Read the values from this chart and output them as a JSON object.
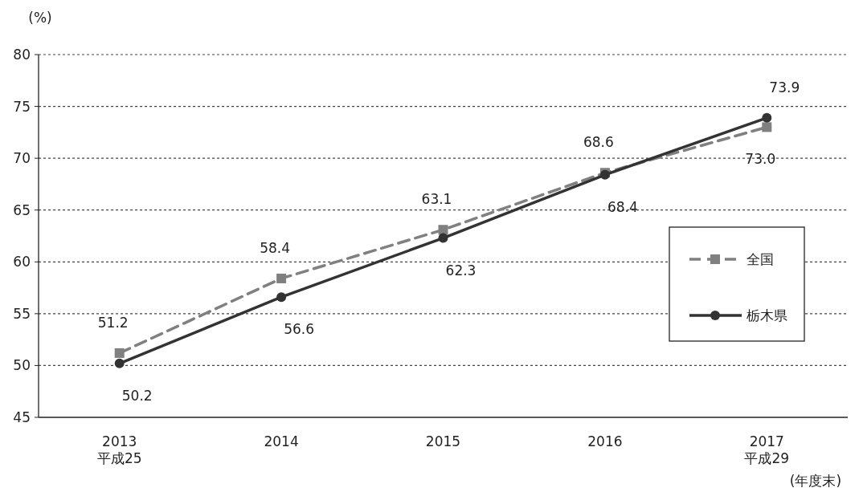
{
  "chart_data": {
    "type": "line",
    "categories": [
      "2013\n平成25",
      "2014",
      "2015",
      "2016",
      "2017\n平成29"
    ],
    "series": [
      {
        "name": "全国",
        "color": "#808080",
        "values": [
          51.2,
          58.4,
          63.1,
          68.6,
          73.0
        ],
        "value_labels": [
          "51.2",
          "58.4",
          "63.1",
          "68.6",
          "73.0"
        ],
        "marker": "square",
        "line_style": "dashed"
      },
      {
        "name": "栃木県",
        "color": "#333333",
        "values": [
          50.2,
          56.6,
          62.3,
          68.4,
          73.9
        ],
        "value_labels": [
          "50.2",
          "56.6",
          "62.3",
          "68.4",
          "73.9"
        ],
        "marker": "circle",
        "line_style": "solid"
      }
    ],
    "ylabel": "(%)",
    "xlabel": "(年度末)",
    "ylim": [
      45,
      80
    ],
    "yticks": [
      45,
      50,
      55,
      60,
      65,
      70,
      75,
      80
    ],
    "grid": "y",
    "legend": "right"
  }
}
